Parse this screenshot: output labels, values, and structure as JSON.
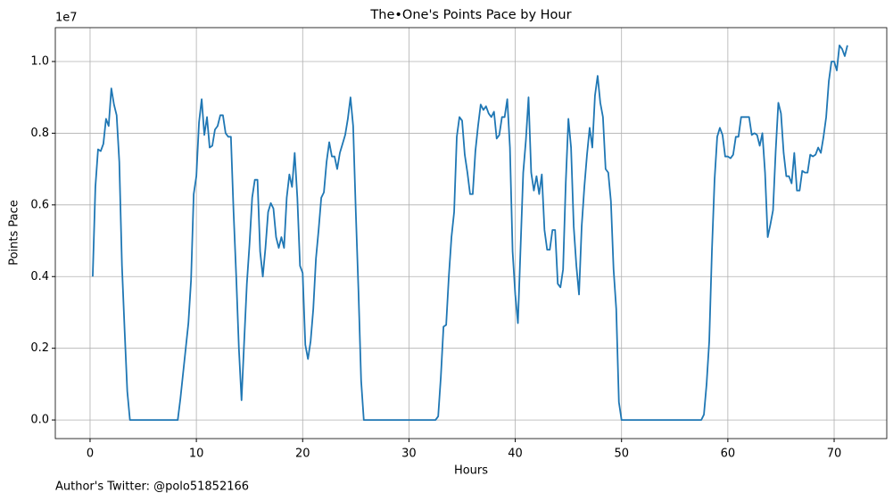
{
  "chart_data": {
    "type": "line",
    "title": "The•One's Points Pace by Hour",
    "x_label": "Hours",
    "y_label": "Points Pace",
    "y_offset": "1e7",
    "footnote": "Author's Twitter: @polo51852166",
    "color": "#1f77b4",
    "grid": true,
    "xlim": [
      -3.27,
      74.95
    ],
    "ylim": [
      -0.052,
      1.0945
    ],
    "xticks": [
      0,
      10,
      20,
      30,
      40,
      50,
      60,
      70
    ],
    "yticks": [
      {
        "value": 0,
        "label": "0.0"
      },
      0.2,
      0.4,
      0.6,
      0.8,
      {
        "value": 1,
        "label": "1.0"
      }
    ],
    "x": [
      0.25,
      0.5,
      0.75,
      1,
      1.25,
      1.5,
      1.75,
      2,
      2.25,
      2.5,
      2.75,
      3,
      3.25,
      3.5,
      3.75,
      8.25,
      8.5,
      8.75,
      9,
      9.25,
      9.5,
      9.75,
      10,
      10.25,
      10.5,
      10.75,
      11,
      11.25,
      11.5,
      11.75,
      12,
      12.25,
      12.5,
      12.75,
      13,
      13.25,
      13.5,
      13.75,
      14,
      14.25,
      14.5,
      14.75,
      15,
      15.25,
      15.5,
      15.75,
      16,
      16.25,
      16.5,
      16.75,
      17,
      17.25,
      17.5,
      17.75,
      18,
      18.25,
      18.5,
      18.75,
      19,
      19.25,
      19.5,
      19.75,
      20,
      20.25,
      20.5,
      20.75,
      21,
      21.25,
      21.5,
      21.75,
      22,
      22.25,
      22.5,
      22.75,
      23,
      23.25,
      23.5,
      23.75,
      24,
      24.25,
      24.5,
      24.75,
      25,
      25.25,
      25.5,
      25.75,
      32.5,
      32.75,
      33,
      33.25,
      33.5,
      33.75,
      34,
      34.25,
      34.5,
      34.75,
      35,
      35.25,
      35.5,
      35.75,
      36,
      36.25,
      36.5,
      36.75,
      37,
      37.25,
      37.5,
      37.75,
      38,
      38.25,
      38.5,
      38.75,
      39,
      39.25,
      39.5,
      39.75,
      40,
      40.25,
      40.5,
      40.75,
      41,
      41.25,
      41.5,
      41.75,
      42,
      42.25,
      42.5,
      42.75,
      43,
      43.25,
      43.5,
      43.75,
      44,
      44.25,
      44.5,
      44.75,
      45,
      45.25,
      45.5,
      45.75,
      46,
      46.25,
      46.5,
      46.75,
      47,
      47.25,
      47.5,
      47.75,
      48,
      48.25,
      48.5,
      48.75,
      49,
      49.25,
      49.5,
      49.75,
      50,
      57.5,
      57.75,
      58,
      58.25,
      58.5,
      58.75,
      59,
      59.25,
      59.5,
      59.75,
      60,
      60.25,
      60.5,
      60.75,
      61,
      61.25,
      61.5,
      61.75,
      62,
      62.25,
      62.5,
      62.75,
      63,
      63.25,
      63.5,
      63.75,
      64,
      64.25,
      64.5,
      64.75,
      65,
      65.25,
      65.5,
      65.75,
      66,
      66.25,
      66.5,
      66.75,
      67,
      67.25,
      67.5,
      67.75,
      68,
      68.25,
      68.5,
      68.75,
      69,
      69.25,
      69.5,
      69.75,
      70,
      70.25,
      70.5,
      70.75,
      71,
      71.25
    ],
    "values": [
      0.4,
      0.65,
      0.755,
      0.75,
      0.77,
      0.84,
      0.82,
      0.925,
      0.88,
      0.85,
      0.72,
      0.43,
      0.25,
      0.08,
      0.0,
      0.0,
      0.06,
      0.13,
      0.2,
      0.27,
      0.39,
      0.63,
      0.68,
      0.83,
      0.895,
      0.795,
      0.845,
      0.76,
      0.765,
      0.81,
      0.82,
      0.85,
      0.85,
      0.8,
      0.79,
      0.79,
      0.58,
      0.4,
      0.2,
      0.055,
      0.22,
      0.38,
      0.49,
      0.62,
      0.67,
      0.67,
      0.47,
      0.4,
      0.48,
      0.58,
      0.605,
      0.59,
      0.51,
      0.48,
      0.51,
      0.48,
      0.62,
      0.685,
      0.65,
      0.745,
      0.62,
      0.43,
      0.41,
      0.21,
      0.17,
      0.22,
      0.31,
      0.45,
      0.53,
      0.62,
      0.635,
      0.72,
      0.775,
      0.735,
      0.735,
      0.7,
      0.745,
      0.77,
      0.795,
      0.84,
      0.9,
      0.82,
      0.58,
      0.36,
      0.11,
      0.0,
      0.0,
      0.01,
      0.12,
      0.26,
      0.265,
      0.4,
      0.51,
      0.58,
      0.79,
      0.845,
      0.835,
      0.74,
      0.69,
      0.63,
      0.63,
      0.75,
      0.82,
      0.88,
      0.865,
      0.875,
      0.855,
      0.845,
      0.86,
      0.785,
      0.795,
      0.845,
      0.845,
      0.895,
      0.76,
      0.47,
      0.35,
      0.27,
      0.48,
      0.69,
      0.78,
      0.9,
      0.69,
      0.64,
      0.68,
      0.63,
      0.685,
      0.53,
      0.475,
      0.475,
      0.53,
      0.53,
      0.38,
      0.37,
      0.42,
      0.66,
      0.84,
      0.76,
      0.54,
      0.43,
      0.35,
      0.54,
      0.65,
      0.74,
      0.815,
      0.76,
      0.905,
      0.96,
      0.885,
      0.845,
      0.7,
      0.69,
      0.61,
      0.42,
      0.31,
      0.05,
      0.0,
      0.0,
      0.015,
      0.1,
      0.22,
      0.47,
      0.67,
      0.79,
      0.815,
      0.795,
      0.735,
      0.735,
      0.73,
      0.74,
      0.79,
      0.79,
      0.845,
      0.845,
      0.845,
      0.845,
      0.795,
      0.8,
      0.795,
      0.765,
      0.8,
      0.69,
      0.51,
      0.545,
      0.585,
      0.75,
      0.885,
      0.855,
      0.745,
      0.68,
      0.68,
      0.66,
      0.745,
      0.64,
      0.64,
      0.695,
      0.69,
      0.69,
      0.74,
      0.735,
      0.74,
      0.76,
      0.745,
      0.79,
      0.845,
      0.945,
      1.0,
      1.0,
      0.975,
      1.045,
      1.035,
      1.015,
      1.045
    ]
  }
}
